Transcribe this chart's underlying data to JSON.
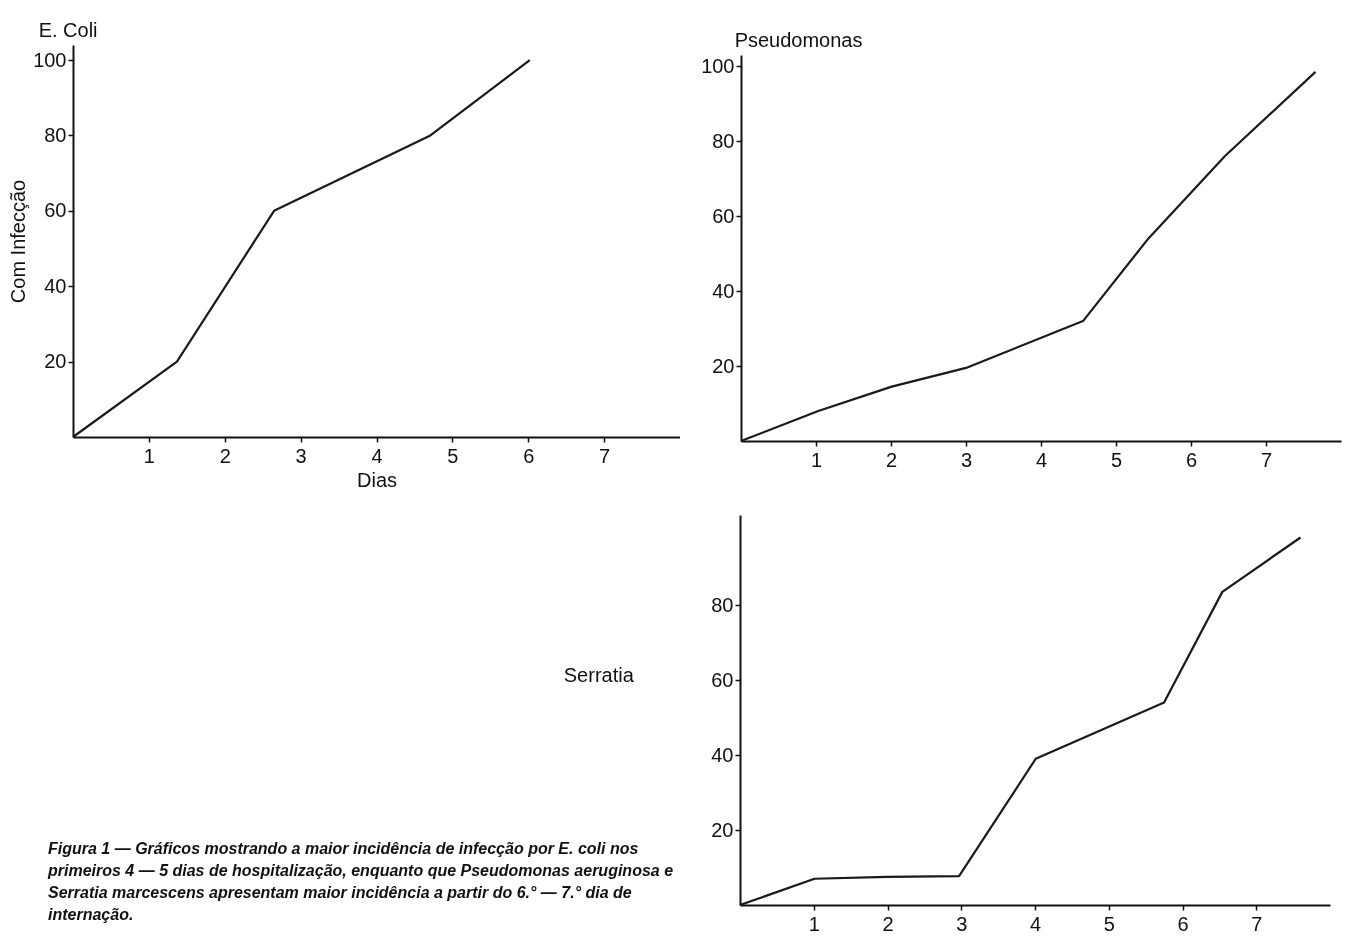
{
  "chart_data": [
    {
      "type": "line",
      "title": "E. Coli",
      "xlabel": "Dias",
      "ylabel": "Com Infecção",
      "x": [
        0,
        1.37,
        2.65,
        4.71,
        6.02
      ],
      "values": [
        0,
        20,
        60,
        80,
        100
      ],
      "color": "#1a1a1a",
      "xlim": [
        0,
        8
      ],
      "ylim": [
        0,
        104
      ],
      "xticks": [
        1,
        2,
        3,
        4,
        5,
        6,
        7
      ],
      "yticks": [
        20,
        40,
        60,
        80,
        100
      ],
      "grid": false,
      "marker": "none",
      "line_style": "solid",
      "annotations": [
        "Figura 1 — Gráficos mostrando a maior incidência de infecção por E. coli nos primeiros 4 — 5 dias de hospitalização, enquanto que Pseudomonas aeruginosa e Serratia marcescens apresentam maior incidência a partir do 6.° — 7.° dia de internação."
      ]
    },
    {
      "type": "line",
      "title": "Pseudomonas",
      "x": [
        0,
        1.03,
        2.01,
        3.0,
        4.56,
        5.43,
        6.45,
        7.66
      ],
      "values": [
        0,
        8,
        14.5,
        19.5,
        32,
        54,
        76,
        98.5
      ],
      "color": "#1a1a1a",
      "xlim": [
        0,
        8
      ],
      "ylim": [
        0,
        103
      ],
      "xticks": [
        1,
        2,
        3,
        4,
        5,
        6,
        7
      ],
      "yticks": [
        20,
        40,
        60,
        80,
        100
      ],
      "grid": false,
      "marker": "none",
      "line_style": "solid"
    },
    {
      "type": "line",
      "title": "Serratia",
      "x": [
        0,
        1.01,
        1.99,
        2.97,
        4.01,
        5.75,
        6.54,
        7.6
      ],
      "values": [
        0,
        7,
        7.5,
        7.7,
        39,
        54,
        83.5,
        98
      ],
      "color": "#1a1a1a",
      "xlim": [
        0,
        8
      ],
      "ylim": [
        0,
        104
      ],
      "xticks": [
        1,
        2,
        3,
        4,
        5,
        6,
        7
      ],
      "yticks": [
        20,
        40,
        60,
        80
      ],
      "grid": false,
      "marker": "none",
      "line_style": "solid"
    }
  ]
}
